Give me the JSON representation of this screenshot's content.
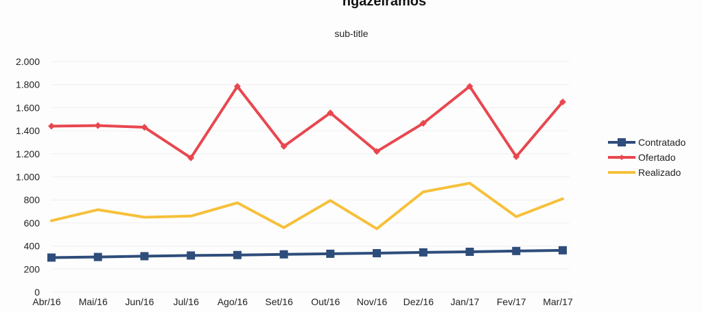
{
  "chart_data": {
    "type": "line",
    "title": "ngazeiramos",
    "subtitle": "sub-title",
    "xlabel": "",
    "ylabel": "",
    "categories": [
      "Abr/16",
      "Mai/16",
      "Jun/16",
      "Jul/16",
      "Ago/16",
      "Set/16",
      "Out/16",
      "Nov/16",
      "Dez/16",
      "Jan/17",
      "Fev/17",
      "Mar/17"
    ],
    "ylim": [
      0,
      2000
    ],
    "yticks": [
      0,
      200,
      400,
      600,
      800,
      1000,
      1200,
      1400,
      1600,
      1800,
      2000
    ],
    "ytick_labels": [
      "0",
      "200",
      "400",
      "600",
      "800",
      "1.000",
      "1.200",
      "1.400",
      "1.600",
      "1.800",
      "2.000"
    ],
    "grid": true,
    "legend_position": "right",
    "series": [
      {
        "name": "Contratado",
        "color": "#2e4d7b",
        "marker": "square",
        "values": [
          300,
          305,
          312,
          318,
          322,
          328,
          333,
          338,
          345,
          350,
          357,
          363
        ]
      },
      {
        "name": "Ofertado",
        "color": "#e8474f",
        "marker": "diamond",
        "values": [
          1440,
          1445,
          1430,
          1165,
          1785,
          1265,
          1555,
          1220,
          1465,
          1785,
          1175,
          1650
        ]
      },
      {
        "name": "Realizado",
        "color": "#f6c03a",
        "marker": "none",
        "values": [
          620,
          715,
          650,
          660,
          775,
          560,
          795,
          550,
          870,
          945,
          655,
          810
        ]
      }
    ]
  }
}
